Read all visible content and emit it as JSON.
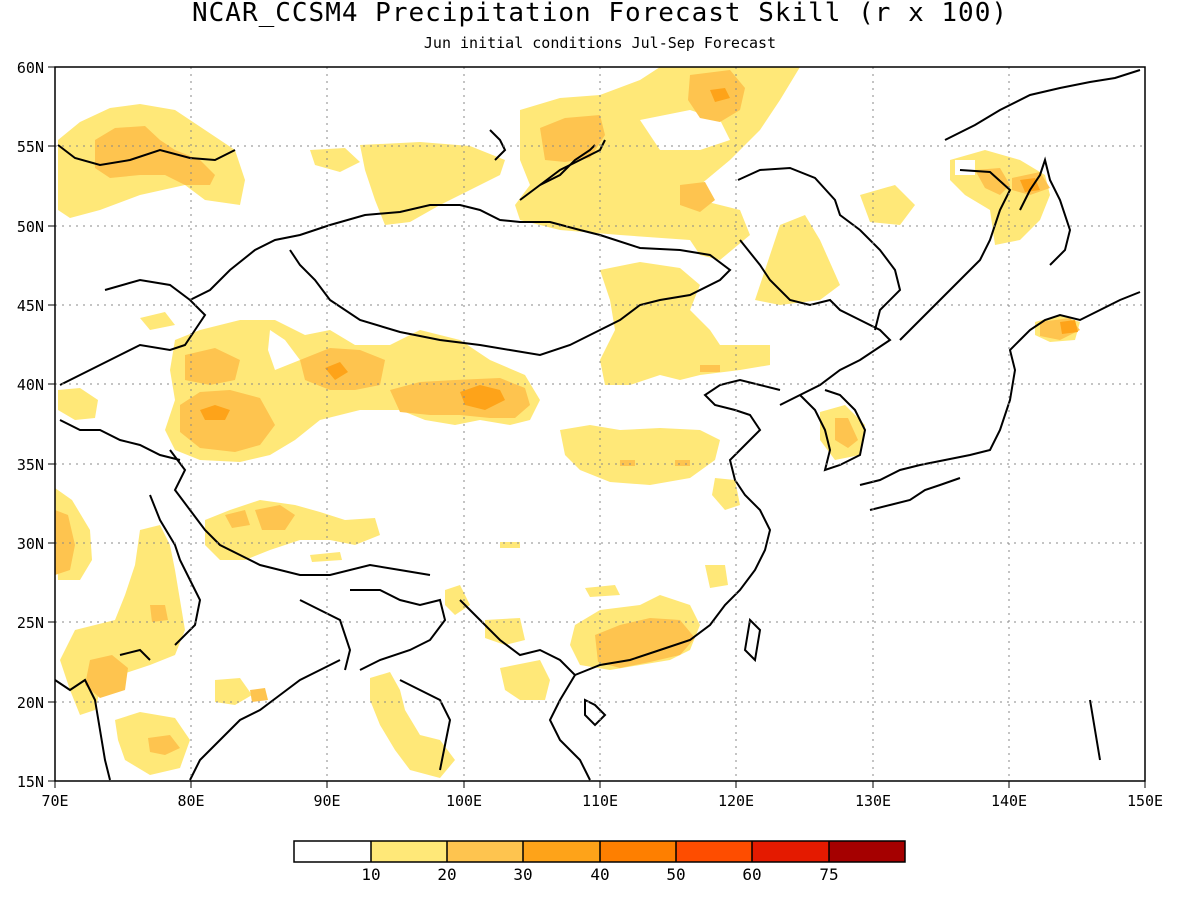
{
  "title": "NCAR_CCSM4 Precipitation Forecast Skill (r x 100)",
  "subtitle": "Jun initial conditions  Jul-Sep Forecast",
  "map": {
    "lon_range": [
      70,
      150
    ],
    "lat_range": [
      15,
      60
    ],
    "x_ticks": [
      "70E",
      "80E",
      "90E",
      "100E",
      "110E",
      "120E",
      "130E",
      "140E",
      "150E"
    ],
    "y_ticks": [
      "60N",
      "55N",
      "50N",
      "45N",
      "40N",
      "35N",
      "30N",
      "25N",
      "20N",
      "15N"
    ],
    "grid": "dotted"
  },
  "colorbar": {
    "labels": [
      "10",
      "20",
      "30",
      "40",
      "50",
      "60",
      "75"
    ],
    "colors": [
      "#ffffff",
      "#ffe878",
      "#fec44f",
      "#fea319",
      "#fe7f00",
      "#fe4d00",
      "#e41a00",
      "#a50000"
    ]
  },
  "regions": {
    "skill_10_20": "#ffe878",
    "skill_20_30": "#fec44f",
    "skill_30_40": "#fea319"
  }
}
